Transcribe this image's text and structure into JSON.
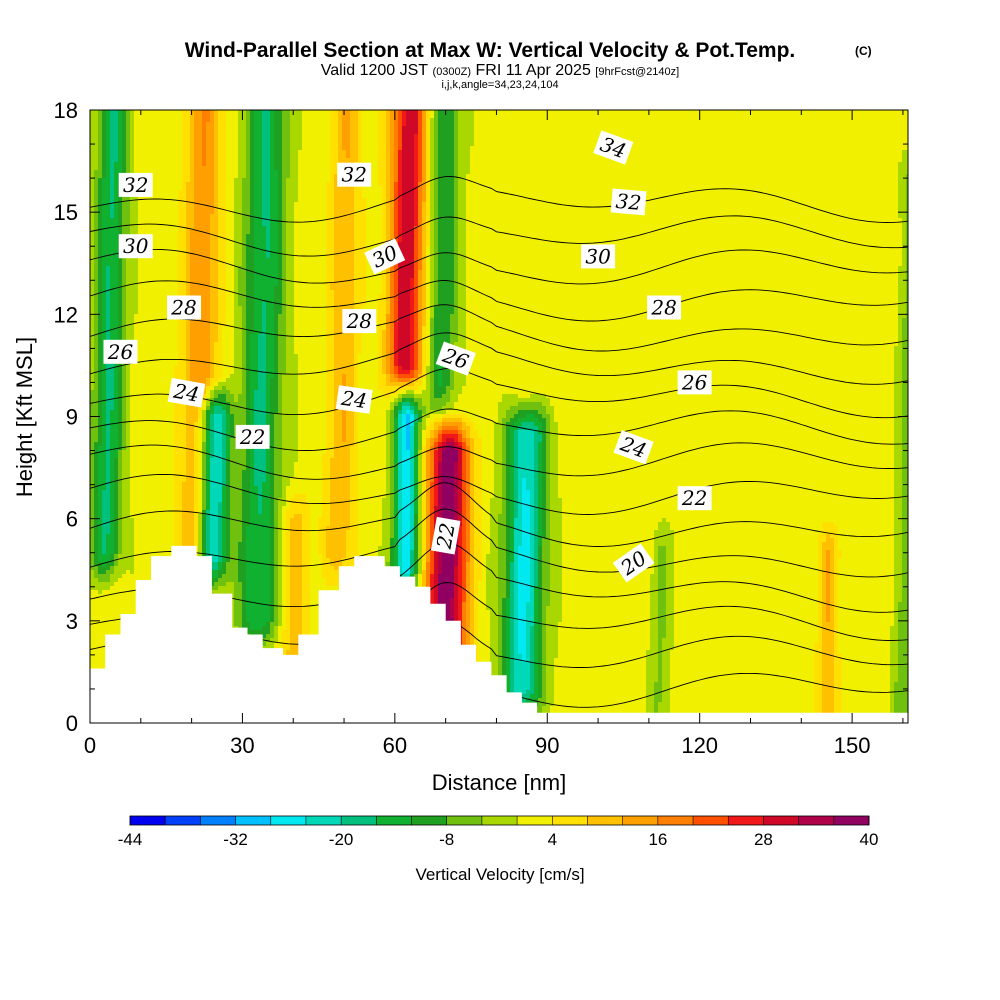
{
  "title": {
    "main": "Wind-Parallel Section at Max W: Vertical Velocity & Pot.Temp.",
    "copyright": "(C)",
    "valid_prefix": "Valid 1200 JST",
    "valid_utc": "(0300Z)",
    "valid_date": "FRI 11 Apr 2025",
    "forecast": "[9hrFcst@2140z]",
    "indices": "i,j,k,angle=34,23,24,104"
  },
  "chart_data": {
    "type": "heatmap",
    "xlabel": "Distance [nm]",
    "ylabel": "Height [Kft MSL]",
    "xlim": [
      0,
      161
    ],
    "ylim": [
      0,
      18
    ],
    "xticks": [
      "0",
      "30",
      "60",
      "90",
      "120",
      "150"
    ],
    "yticks": [
      "0",
      "3",
      "6",
      "9",
      "12",
      "15",
      "18"
    ],
    "xtick_values": [
      0,
      30,
      60,
      90,
      120,
      150
    ],
    "ytick_values": [
      0,
      3,
      6,
      9,
      12,
      15,
      18
    ],
    "colorbar": {
      "label": "Vertical Velocity [cm/s]",
      "tick_labels": [
        "-44",
        "-32",
        "-20",
        "-8",
        "4",
        "16",
        "28",
        "40"
      ],
      "tick_values": [
        -44,
        -32,
        -20,
        -8,
        4,
        16,
        28,
        40
      ],
      "levels": [
        -44,
        -40,
        -36,
        -32,
        -28,
        -24,
        -20,
        -16,
        -12,
        -8,
        -4,
        0,
        4,
        8,
        12,
        16,
        20,
        24,
        28,
        32,
        36,
        40
      ],
      "colors": [
        "#0000f0",
        "#0040f8",
        "#0080ff",
        "#00c0ff",
        "#00e8f0",
        "#00d8b8",
        "#00c080",
        "#10b030",
        "#20a020",
        "#70c010",
        "#a8d800",
        "#f0f000",
        "#ffe000",
        "#ffc000",
        "#ffa000",
        "#ff8000",
        "#ff5000",
        "#f01818",
        "#d00828",
        "#b00048",
        "#900060"
      ]
    },
    "velocity_features": [
      {
        "x": 3,
        "y_top": 18,
        "y_bottom": 5,
        "w": -18,
        "width": 3
      },
      {
        "x": 21,
        "y_top": 18,
        "y_bottom": 4.8,
        "w": 14,
        "width": 3.5
      },
      {
        "x": 24,
        "y_top": 9,
        "y_bottom": 4.8,
        "w": -30,
        "width": 3
      },
      {
        "x": 33,
        "y_top": 18,
        "y_bottom": 3,
        "w": -18,
        "width": 4
      },
      {
        "x": 40,
        "y_top": 6,
        "y_bottom": 1.8,
        "w": 8,
        "width": 3
      },
      {
        "x": 49,
        "y_top": 18,
        "y_bottom": 5,
        "w": 10,
        "width": 3
      },
      {
        "x": 62,
        "y_top": 18,
        "y_bottom": 10.5,
        "w": 30,
        "width": 3.5
      },
      {
        "x": 62,
        "y_top": 9,
        "y_bottom": 4.5,
        "w": -30,
        "width": 2.5
      },
      {
        "x": 69,
        "y_top": 18,
        "y_bottom": 10,
        "w": -14,
        "width": 3
      },
      {
        "x": 70,
        "y_top": 8,
        "y_bottom": 2,
        "w": 38,
        "width": 4
      },
      {
        "x": 85,
        "y_top": 8.5,
        "y_bottom": 1,
        "w": -26,
        "width": 4
      },
      {
        "x": 112,
        "y_top": 5,
        "y_bottom": 0.3,
        "w": -6,
        "width": 2
      },
      {
        "x": 145,
        "y_top": 5,
        "y_bottom": 0.3,
        "w": 10,
        "width": 2
      },
      {
        "x": 160,
        "y_top": 16,
        "y_bottom": 0.3,
        "w": -8,
        "width": 2
      }
    ],
    "terrain_kft": [
      [
        0,
        1.6
      ],
      [
        3,
        2.6
      ],
      [
        6,
        3.2
      ],
      [
        9,
        4.2
      ],
      [
        12,
        4.9
      ],
      [
        16,
        5.2
      ],
      [
        21,
        4.9
      ],
      [
        24,
        3.8
      ],
      [
        28,
        2.8
      ],
      [
        31,
        2.6
      ],
      [
        34,
        2.2
      ],
      [
        38,
        2.0
      ],
      [
        41,
        2.6
      ],
      [
        45,
        3.9
      ],
      [
        49,
        4.6
      ],
      [
        52,
        4.9
      ],
      [
        58,
        4.6
      ],
      [
        61,
        4.3
      ],
      [
        64,
        4.0
      ],
      [
        67,
        3.5
      ],
      [
        70,
        3.0
      ],
      [
        73,
        2.3
      ],
      [
        76,
        1.8
      ],
      [
        79,
        1.4
      ],
      [
        82,
        0.9
      ],
      [
        85,
        0.6
      ],
      [
        88,
        0.3
      ],
      [
        161,
        0.3
      ]
    ],
    "theta_contour_labels": [
      {
        "text": "32",
        "x": 9,
        "y": 15.8,
        "rot": 0
      },
      {
        "text": "30",
        "x": 9,
        "y": 14.0,
        "rot": 0
      },
      {
        "text": "26",
        "x": 6,
        "y": 10.9,
        "rot": 0
      },
      {
        "text": "28",
        "x": 18.5,
        "y": 12.2,
        "rot": 0
      },
      {
        "text": "24",
        "x": 19,
        "y": 9.7,
        "rot": 10
      },
      {
        "text": "22",
        "x": 32,
        "y": 8.4,
        "rot": 0
      },
      {
        "text": "32",
        "x": 52,
        "y": 16.1,
        "rot": 0
      },
      {
        "text": "30",
        "x": 58,
        "y": 13.7,
        "rot": -25
      },
      {
        "text": "28",
        "x": 53,
        "y": 11.8,
        "rot": 0
      },
      {
        "text": "24",
        "x": 52,
        "y": 9.5,
        "rot": 8
      },
      {
        "text": "26",
        "x": 72,
        "y": 10.7,
        "rot": 20
      },
      {
        "text": "22",
        "x": 70,
        "y": 5.5,
        "rot": -80
      },
      {
        "text": "34",
        "x": 103,
        "y": 16.9,
        "rot": 20
      },
      {
        "text": "32",
        "x": 106,
        "y": 15.3,
        "rot": 5
      },
      {
        "text": "30",
        "x": 100,
        "y": 13.7,
        "rot": 0
      },
      {
        "text": "28",
        "x": 113,
        "y": 12.2,
        "rot": 0
      },
      {
        "text": "26",
        "x": 119,
        "y": 10.0,
        "rot": 0
      },
      {
        "text": "24",
        "x": 107,
        "y": 8.1,
        "rot": 20
      },
      {
        "text": "22",
        "x": 119,
        "y": 6.6,
        "rot": 0
      },
      {
        "text": "20",
        "x": 107,
        "y": 4.7,
        "rot": -35
      }
    ],
    "theta_contour_levels": [
      20,
      21,
      22,
      23,
      24,
      25,
      26,
      27,
      28,
      29,
      30,
      31,
      32,
      33,
      34,
      35
    ]
  }
}
